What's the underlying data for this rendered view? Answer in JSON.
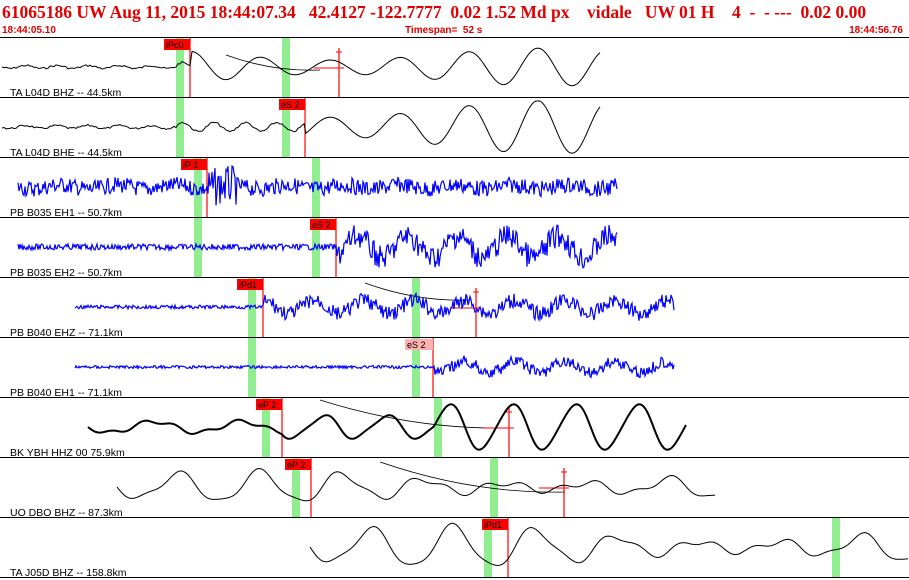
{
  "header": {
    "title": "61065186 UW Aug 11, 2015 18:44:07.34   42.4127 -122.7777  0.02 1.52 Md px    vidale   UW 01 H    4  -  - ---  0.02 0.00",
    "start_time": "18:44:05.10",
    "timespan": "Timespan=  52 s",
    "end_time": "18:44:56.76"
  },
  "colors": {
    "header_text": "#e00000",
    "pick_label_bg": "#ff0000",
    "pick_line": "#ff0000",
    "window_band": "#90ee90",
    "trace_black": "#000000",
    "trace_blue": "#0000ff",
    "separator": "#000000"
  },
  "traces": [
    {
      "label": "TA L04D BHZ -- 44.5km",
      "color": "black",
      "picks": [
        {
          "label": "iPc0",
          "arrow": true
        }
      ],
      "bands": 2
    },
    {
      "label": "TA L04D BHE -- 44.5km",
      "color": "black",
      "picks": [
        {
          "label": "eS 2"
        }
      ],
      "bands": 2
    },
    {
      "label": "PB B035 EH1 -- 50.7km",
      "color": "blue",
      "picks": [
        {
          "label": "iP 1"
        }
      ],
      "bands": 2
    },
    {
      "label": "PB B035 EH2 -- 50.7km",
      "color": "blue",
      "picks": [
        {
          "label": "eS 2"
        }
      ],
      "bands": 2
    },
    {
      "label": "PB B040 EHZ -- 71.1km",
      "color": "blue",
      "picks": [
        {
          "label": "iPd1",
          "arrow": true
        }
      ],
      "bands": 2
    },
    {
      "label": "PB B040 EH1 -- 71.1km",
      "color": "blue",
      "picks": [
        {
          "label": "eS 2",
          "light": true
        }
      ],
      "bands": 2
    },
    {
      "label": "BK YBH HHZ 00 75.9km",
      "color": "black",
      "picks": [
        {
          "label": "eP 2",
          "arrow": true
        }
      ],
      "bands": 2
    },
    {
      "label": "UO DBO BHZ -- 87.3km",
      "color": "black",
      "picks": [
        {
          "label": "eP 2",
          "arrow": true
        }
      ],
      "bands": 2
    },
    {
      "label": "TA J05D BHZ -- 158.8km",
      "color": "black",
      "picks": [
        {
          "label": "iPd1"
        }
      ],
      "bands": 2
    }
  ]
}
